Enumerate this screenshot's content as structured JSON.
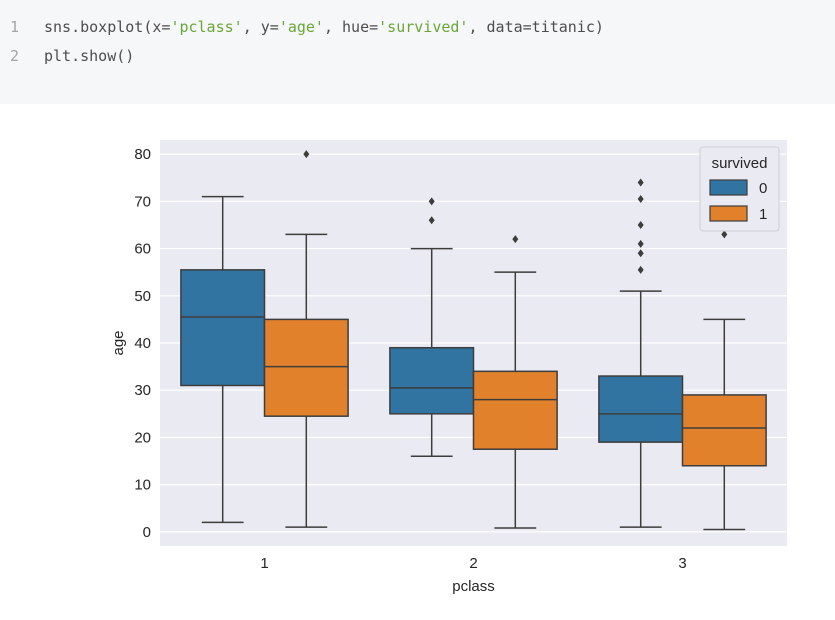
{
  "code": {
    "lines": [
      {
        "number": "1",
        "pre": "sns.boxplot(x=",
        "s1": "'pclass'",
        "mid1": ", y=",
        "s2": "'age'",
        "mid2": ", hue=",
        "s3": "'survived'",
        "post": ", data=titanic)"
      },
      {
        "number": "2",
        "text": "plt.show()"
      }
    ]
  },
  "chart_data": {
    "type": "boxplot",
    "xlabel": "pclass",
    "ylabel": "age",
    "categories": [
      "1",
      "2",
      "3"
    ],
    "ylim": [
      -3,
      83
    ],
    "yticks": [
      0,
      10,
      20,
      30,
      40,
      50,
      60,
      70,
      80
    ],
    "grid": true,
    "legend": {
      "title": "survived",
      "position": "top-right"
    },
    "series": [
      {
        "name": "0",
        "color": "#3274a1",
        "boxes": [
          {
            "category": "1",
            "whisker_low": 2,
            "q1": 31,
            "median": 45.5,
            "q3": 55.5,
            "whisker_high": 71,
            "outliers": []
          },
          {
            "category": "2",
            "whisker_low": 16,
            "q1": 25,
            "median": 30.5,
            "q3": 39,
            "whisker_high": 60,
            "outliers": [
              66,
              70
            ]
          },
          {
            "category": "3",
            "whisker_low": 1,
            "q1": 19,
            "median": 25,
            "q3": 33,
            "whisker_high": 51,
            "outliers": [
              55.5,
              59,
              61,
              65,
              70.5,
              74
            ]
          }
        ]
      },
      {
        "name": "1",
        "color": "#e1812c",
        "boxes": [
          {
            "category": "1",
            "whisker_low": 1,
            "q1": 24.5,
            "median": 35,
            "q3": 45,
            "whisker_high": 63,
            "outliers": [
              80
            ]
          },
          {
            "category": "2",
            "whisker_low": 0.8,
            "q1": 17.5,
            "median": 28,
            "q3": 34,
            "whisker_high": 55,
            "outliers": [
              62
            ]
          },
          {
            "category": "3",
            "whisker_low": 0.5,
            "q1": 14,
            "median": 22,
            "q3": 29,
            "whisker_high": 45,
            "outliers": [
              63
            ]
          }
        ]
      }
    ]
  }
}
